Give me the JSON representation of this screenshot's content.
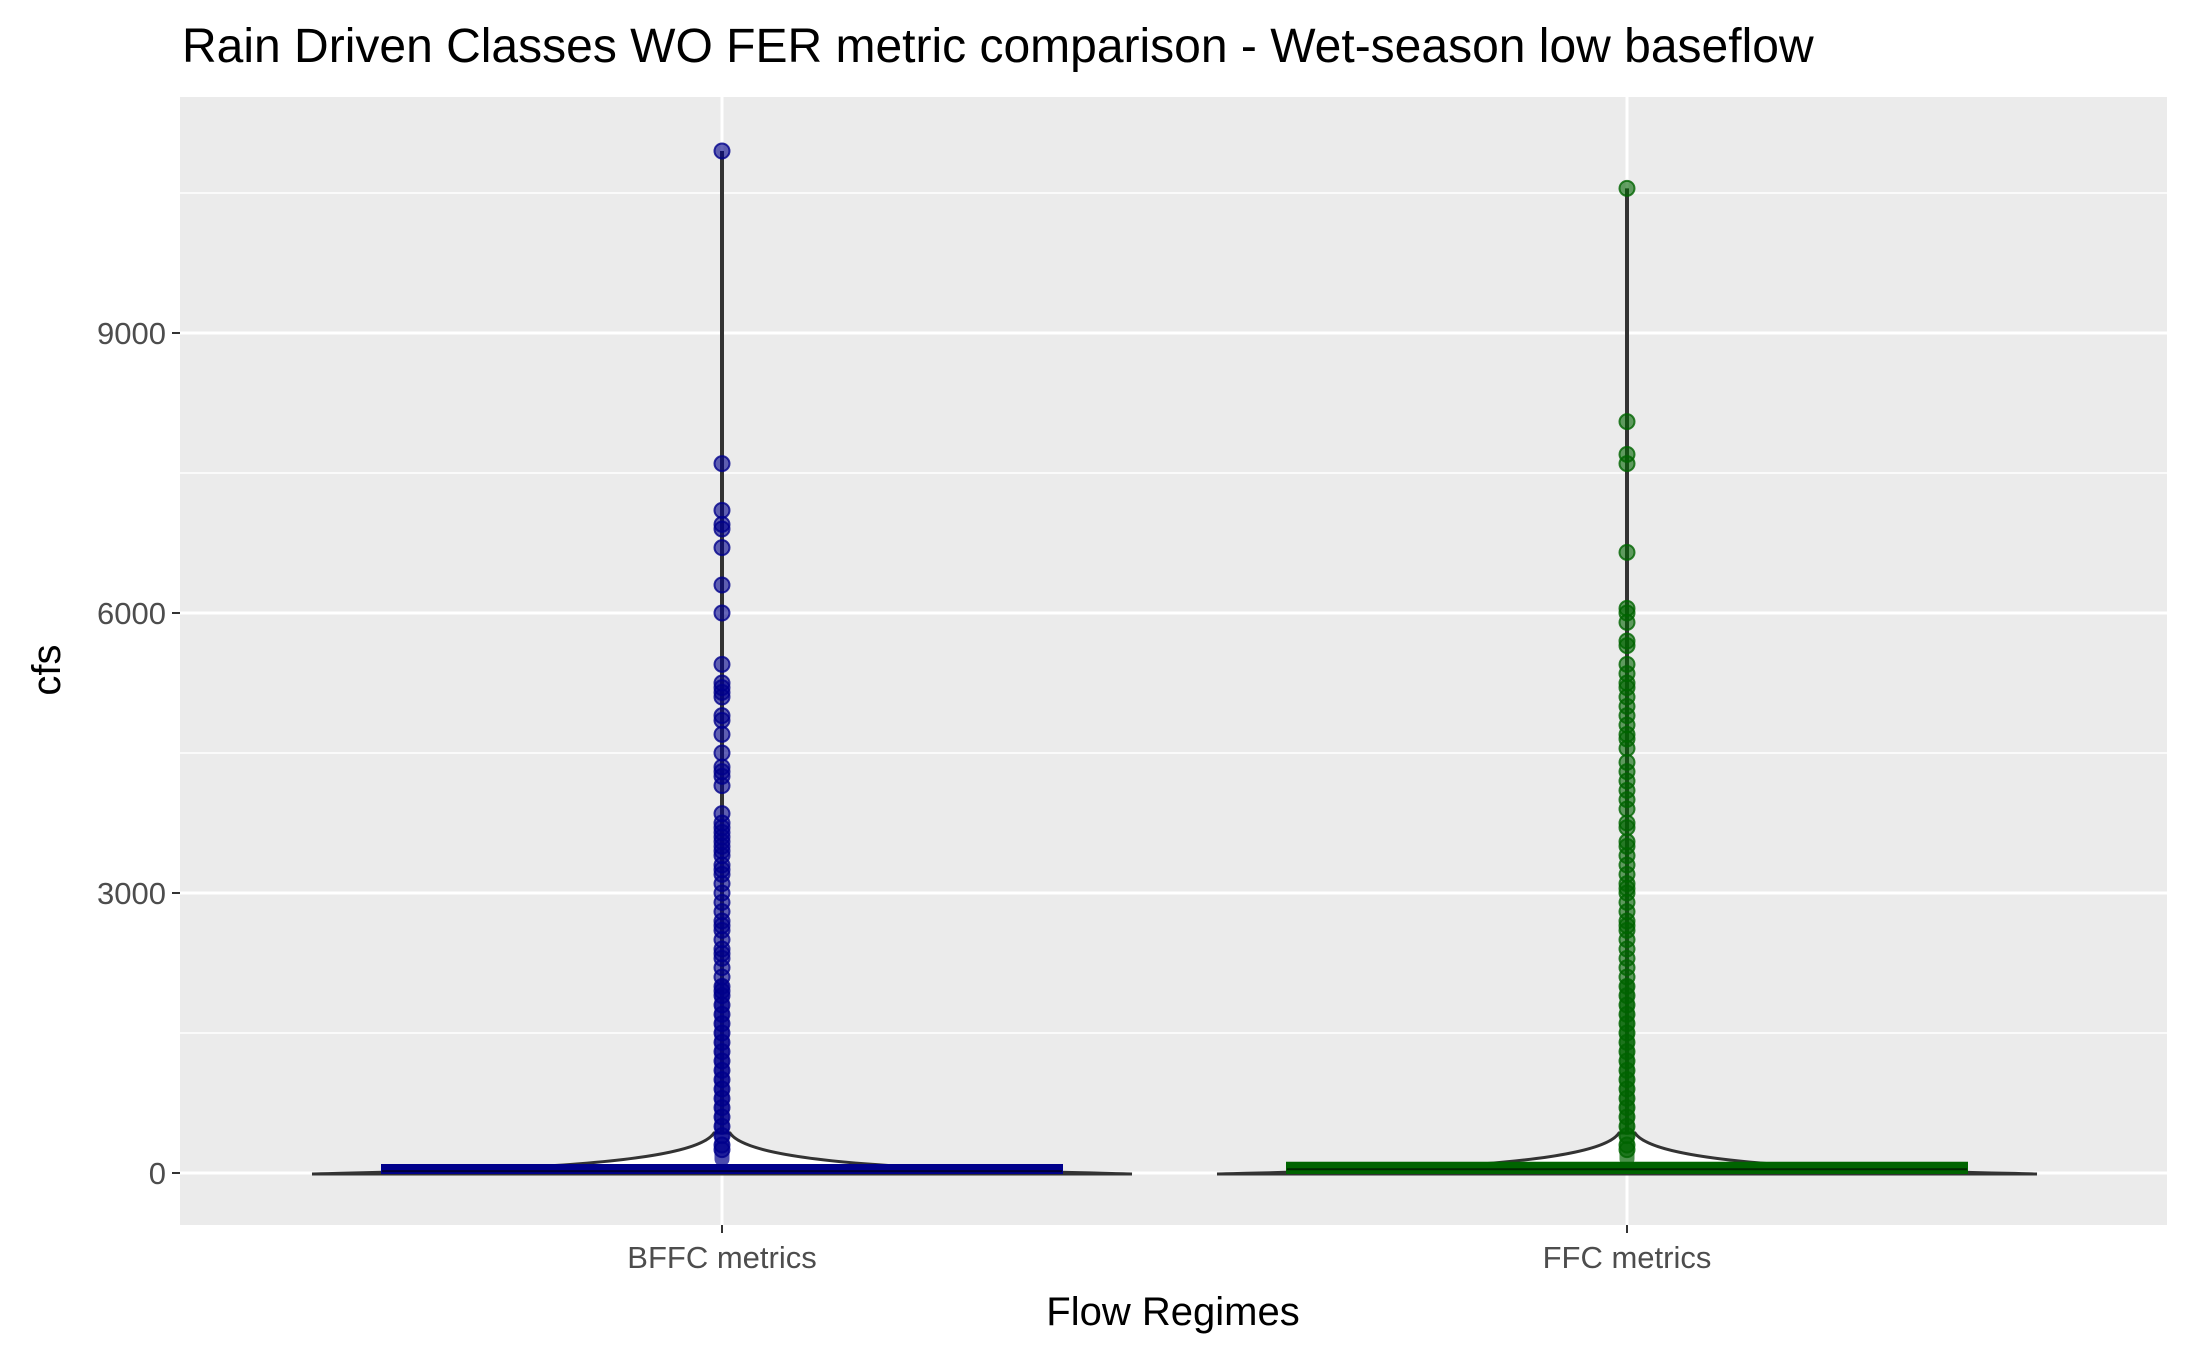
{
  "chart_data": {
    "type": "violin",
    "title": "Rain Driven Classes WO FER metric comparison  - Wet-season low baseflow",
    "xlabel": "Flow Regimes",
    "ylabel": "cfs",
    "categories": [
      "BFFC metrics",
      "FFC metrics"
    ],
    "ylim": [
      -700,
      11500
    ],
    "yticks": [
      0,
      3000,
      6000,
      9000
    ],
    "ytick_labels": [
      "0",
      "3000",
      "6000",
      "9000"
    ],
    "grid": true,
    "panel_background": "#ebebeb",
    "series": [
      {
        "category": "BFFC metrics",
        "fill_color": "#00008b",
        "median": 20,
        "q1": 0,
        "q3": 60,
        "outliers": [
          10950,
          7600,
          7100,
          6950,
          6900,
          6700,
          6300,
          6000,
          5450,
          5250,
          5200,
          5150,
          5100,
          4900,
          4850,
          4700,
          4500,
          4350,
          4300,
          4250,
          4150,
          3850,
          3750,
          3700,
          3650,
          3600,
          3550,
          3500,
          3450,
          3400,
          3300,
          3250,
          3200,
          3100,
          3000,
          2900,
          2800,
          2700,
          2650,
          2600,
          2500,
          2400,
          2350,
          2300,
          2200,
          2100,
          2000,
          1950,
          1900,
          1800,
          1700,
          1600,
          1500,
          1400,
          1300,
          1200,
          1100,
          1000,
          900,
          800,
          700,
          600,
          500,
          400,
          300,
          250
        ]
      },
      {
        "category": "FFC metrics",
        "fill_color": "#006400",
        "median": 40,
        "q1": 0,
        "q3": 110,
        "outliers": [
          10550,
          8050,
          7700,
          7600,
          6650,
          6050,
          6000,
          5900,
          5700,
          5650,
          5450,
          5350,
          5250,
          5200,
          5100,
          5000,
          4900,
          4800,
          4700,
          4650,
          4550,
          4400,
          4300,
          4200,
          4100,
          4000,
          3900,
          3750,
          3700,
          3550,
          3500,
          3400,
          3300,
          3200,
          3100,
          3050,
          3000,
          2900,
          2800,
          2700,
          2650,
          2600,
          2500,
          2400,
          2300,
          2200,
          2100,
          2000,
          1900,
          1800,
          1700,
          1600,
          1500,
          1400,
          1300,
          1200,
          1100,
          1000,
          900,
          800,
          700,
          600,
          500,
          400,
          300,
          250
        ]
      }
    ]
  }
}
